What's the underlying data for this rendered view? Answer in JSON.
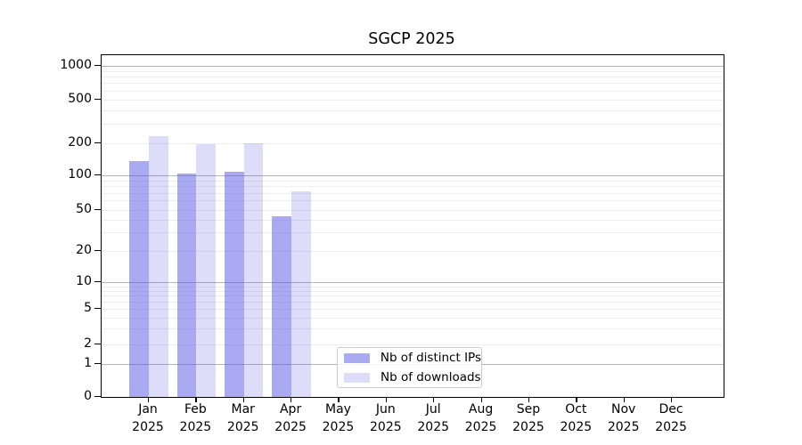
{
  "title": "SGCP 2025",
  "legend": {
    "items": [
      {
        "label": "Nb of distinct IPs",
        "color": "rgba(85,85,230,0.5)"
      },
      {
        "label": "Nb of downloads",
        "color": "rgba(85,85,230,0.2)"
      }
    ]
  },
  "chart_data": {
    "type": "bar",
    "title": "SGCP 2025",
    "categories": [
      "Jan",
      "Feb",
      "Mar",
      "Apr",
      "May",
      "Jun",
      "Jul",
      "Aug",
      "Sep",
      "Oct",
      "Nov",
      "Dec"
    ],
    "year_label": "2025",
    "series": [
      {
        "name": "Nb of distinct IPs",
        "color": "rgba(85,85,230,0.5)",
        "values": [
          135,
          103,
          108,
          43,
          0,
          0,
          0,
          0,
          0,
          0,
          0,
          0
        ]
      },
      {
        "name": "Nb of downloads",
        "color": "rgba(85,85,230,0.2)",
        "values": [
          230,
          195,
          200,
          72,
          0,
          0,
          0,
          0,
          0,
          0,
          0,
          0
        ]
      }
    ],
    "xlabel": "",
    "ylabel": "",
    "yscale": "log-like (log above 1, linear 0–1)",
    "yticks": [
      1000,
      500,
      200,
      100,
      50,
      20,
      10,
      5,
      2,
      1,
      0
    ],
    "ylim": [
      0,
      1270
    ],
    "grid": "on (major gray at powers of 10, light minor lines)",
    "legend_position": "inside axes, lower center-left",
    "colors": {
      "major_gridline": "#b4b4b4",
      "minor_gridline": "#ededed",
      "axis": "#000000",
      "accent": "#5555e6"
    }
  }
}
